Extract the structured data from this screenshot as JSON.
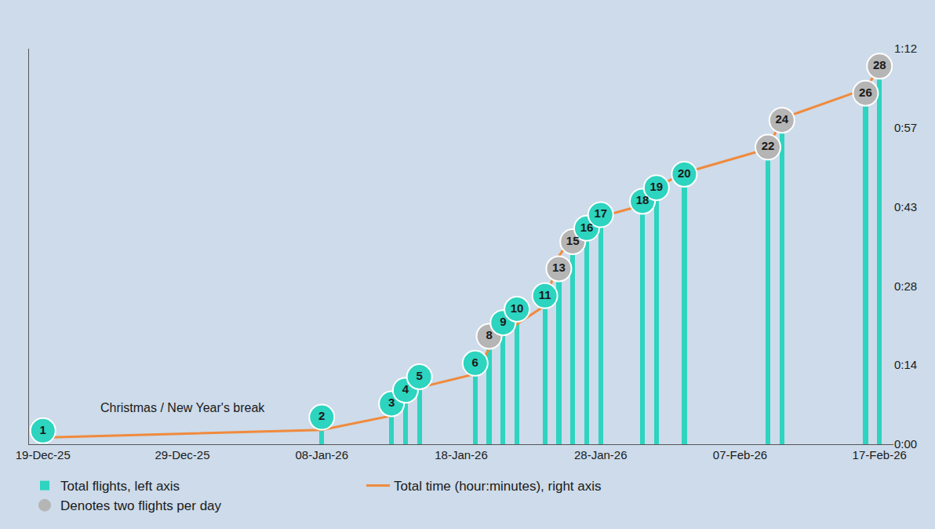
{
  "chart_data": {
    "type": "bar",
    "x": [
      "2025-12-19",
      "2026-01-08",
      "2026-01-13",
      "2026-01-14",
      "2026-01-15",
      "2026-01-19",
      "2026-01-20",
      "2026-01-21",
      "2026-01-22",
      "2026-01-24",
      "2026-01-25",
      "2026-01-26",
      "2026-01-27",
      "2026-01-28",
      "2026-01-31",
      "2026-02-01",
      "2026-02-03",
      "2026-02-09",
      "2026-02-10",
      "2026-02-16",
      "2026-02-17"
    ],
    "series": [
      {
        "name": "Total flights, left axis",
        "type": "bar",
        "color": "#2dd4bf",
        "values": [
          1,
          2,
          3,
          4,
          5,
          6,
          8,
          9,
          10,
          11,
          13,
          15,
          16,
          17,
          18,
          19,
          20,
          22,
          24,
          26,
          28
        ],
        "data_labels": true,
        "marker": "circle",
        "colors": [
          "#2dd4bf",
          "#2dd4bf",
          "#2dd4bf",
          "#2dd4bf",
          "#2dd4bf",
          "#2dd4bf",
          "#b5b5b5",
          "#2dd4bf",
          "#2dd4bf",
          "#2dd4bf",
          "#b5b5b5",
          "#b5b5b5",
          "#2dd4bf",
          "#2dd4bf",
          "#2dd4bf",
          "#2dd4bf",
          "#2dd4bf",
          "#b5b5b5",
          "#b5b5b5",
          "#b5b5b5",
          "#b5b5b5"
        ]
      },
      {
        "name": "Total time (hour:minutes), right axis",
        "type": "line",
        "axis": "y2",
        "color": "#f08a3c",
        "values": [
          1.2,
          2.6,
          5.2,
          7.8,
          10.3,
          12.8,
          17.4,
          20.0,
          21.9,
          25.2,
          34.2,
          38.0,
          39.9,
          41.4,
          43.5,
          46.8,
          49.4,
          53.8,
          59.3,
          64.7,
          68.6
        ]
      },
      {
        "name": "Denotes two flights per day",
        "type": "legend_marker",
        "color": "#b5b5b5",
        "marker": "circle"
      }
    ],
    "annotations": [
      {
        "text": "Christmas / New Year's break",
        "x": "2025-12-29",
        "y": 6.7,
        "axis": "y2"
      }
    ],
    "xlim": [
      "2025-12-18",
      "2026-02-18"
    ],
    "xticks": [
      {
        "value": "2025-12-19",
        "label": "19-Dec-25"
      },
      {
        "value": "2025-12-29",
        "label": "29-Dec-25"
      },
      {
        "value": "2026-01-08",
        "label": "08-Jan-26"
      },
      {
        "value": "2026-01-18",
        "label": "18-Jan-26"
      },
      {
        "value": "2026-01-28",
        "label": "28-Jan-26"
      },
      {
        "value": "2026-02-07",
        "label": "07-Feb-26"
      },
      {
        "value": "2026-02-17",
        "label": "17-Feb-26"
      }
    ],
    "ylim": [
      0,
      29.3
    ],
    "yticks": [],
    "y2lim": [
      0,
      72
    ],
    "y2ticks": [
      {
        "value": 0,
        "label": "0:00"
      },
      {
        "value": 14.4,
        "label": "0:14"
      },
      {
        "value": 28.8,
        "label": "0:28"
      },
      {
        "value": 43.2,
        "label": "0:43"
      },
      {
        "value": 57.6,
        "label": "0:57"
      },
      {
        "value": 72,
        "label": "1:12"
      }
    ],
    "grid": false,
    "legend": "bottom"
  }
}
